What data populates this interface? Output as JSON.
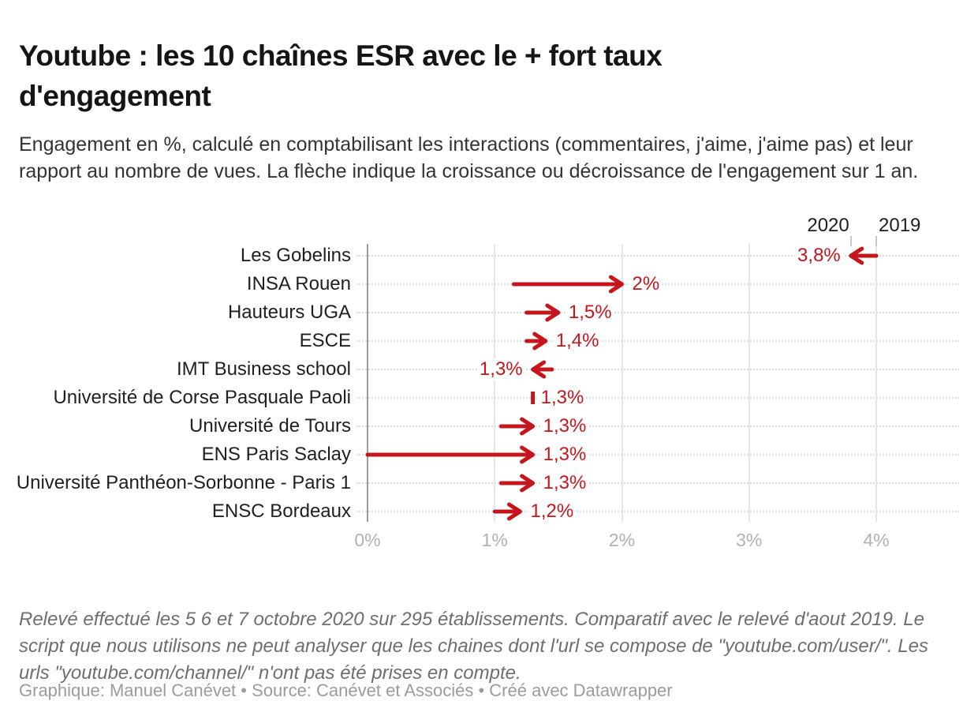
{
  "header": {
    "title": "Youtube : les 10 chaînes ESR avec le + fort taux d'engagement",
    "subtitle": "Engagement en %, calculé en comptabilisant les interactions (commentaires, j'aime, j'aime pas) et leur rapport au nombre de vues. La flèche indique la croissance ou décroissance de l'engagement sur 1 an."
  },
  "chart_data": {
    "type": "arrow",
    "title": "Youtube : les 10 chaînes ESR avec le + fort taux d'engagement",
    "unit": "%",
    "legend": {
      "labels": [
        "2020",
        "2019"
      ],
      "position": "top-right"
    },
    "xlabel": "",
    "x_ticks": [
      "0%",
      "1%",
      "2%",
      "3%",
      "4%"
    ],
    "x_tick_values": [
      0,
      1,
      2,
      3,
      4
    ],
    "xlim": [
      0,
      4.65
    ],
    "grid": true,
    "rows": [
      {
        "label": "Les Gobelins",
        "value_2019": 4.0,
        "value_2020": 3.8,
        "value_label": "3,8%",
        "label_side": "left"
      },
      {
        "label": "INSA Rouen",
        "value_2019": 1.15,
        "value_2020": 2.0,
        "value_label": "2%",
        "label_side": "right"
      },
      {
        "label": "Hauteurs UGA",
        "value_2019": 1.25,
        "value_2020": 1.5,
        "value_label": "1,5%",
        "label_side": "right"
      },
      {
        "label": "ESCE",
        "value_2019": 1.25,
        "value_2020": 1.4,
        "value_label": "1,4%",
        "label_side": "right"
      },
      {
        "label": "IMT Business school",
        "value_2019": 1.45,
        "value_2020": 1.3,
        "value_label": "1,3%",
        "label_side": "left"
      },
      {
        "label": "Université de Corse Pasquale Paoli",
        "value_2019": 1.3,
        "value_2020": 1.3,
        "value_label": "1,3%",
        "label_side": "right"
      },
      {
        "label": "Université de Tours",
        "value_2019": 1.05,
        "value_2020": 1.3,
        "value_label": "1,3%",
        "label_side": "right"
      },
      {
        "label": "ENS Paris Saclay",
        "value_2019": 0.0,
        "value_2020": 1.3,
        "value_label": "1,3%",
        "label_side": "right"
      },
      {
        "label": "Université Panthéon-Sorbonne - Paris 1",
        "value_2019": 1.05,
        "value_2020": 1.3,
        "value_label": "1,3%",
        "label_side": "right"
      },
      {
        "label": "ENSC Bordeaux",
        "value_2019": 1.0,
        "value_2020": 1.2,
        "value_label": "1,2%",
        "label_side": "right"
      }
    ],
    "colors": {
      "arrow_red": "#c4161c",
      "gridline": "#e6e6e6",
      "axis_line": "#9c9c9c",
      "row_guide": "#dcdcdc",
      "axis_text": "#b1b1b1"
    }
  },
  "footer": {
    "notes": "Relevé effectué les 5 6 et 7 octobre 2020 sur 295 établissements. Comparatif avec le relevé d'aout 2019. Le script que nous utilisons ne peut analyser que les chaines dont l'url se compose de \"youtube.com/user/\". Les urls \"youtube.com/channel/\" n'ont pas été prises en compte.",
    "credit": "Graphique: Manuel Canévet • Source: Canévet et Associés • Créé avec Datawrapper"
  }
}
